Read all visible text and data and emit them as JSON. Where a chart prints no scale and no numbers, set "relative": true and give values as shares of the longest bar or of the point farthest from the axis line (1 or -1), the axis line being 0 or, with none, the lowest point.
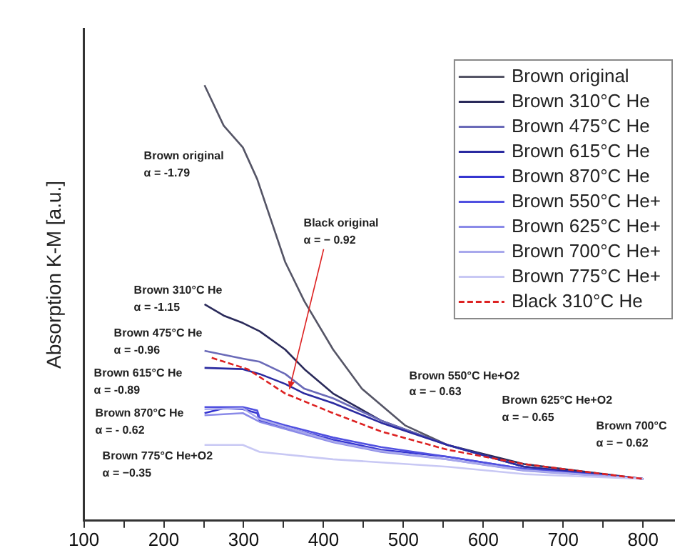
{
  "chart_data": {
    "type": "line",
    "relative": true,
    "ylabel": "Absorption K-M [a.u.]",
    "xlim": [
      100,
      840
    ],
    "xticks": [
      100,
      {
        "value": 150,
        "label": null
      },
      200,
      {
        "value": 250,
        "label": null
      },
      300,
      {
        "value": 350,
        "label": null
      },
      400,
      {
        "value": 450,
        "label": null
      },
      500,
      {
        "value": 550,
        "label": null
      },
      600,
      {
        "value": 650,
        "label": null
      },
      700,
      {
        "value": 750,
        "label": null
      },
      800
    ],
    "legend": "top right",
    "grid": false,
    "marker": "none",
    "series": [
      {
        "name": "Brown original",
        "color": "#555566",
        "x": [
          251,
          275,
          299,
          317,
          352,
          376,
          412,
          448,
          502,
          555,
          651,
          800
        ],
        "values": [
          1,
          0.907,
          0.857,
          0.784,
          0.594,
          0.504,
          0.393,
          0.303,
          0.219,
          0.174,
          0.124,
          0.096
        ]
      },
      {
        "name": "Brown 310°C He",
        "color": "#2a2a5a",
        "x": [
          251,
          275,
          299,
          320,
          352,
          376,
          412,
          472,
          555,
          651,
          800
        ],
        "values": [
          0.497,
          0.471,
          0.454,
          0.435,
          0.393,
          0.348,
          0.292,
          0.23,
          0.174,
          0.13,
          0.096
        ]
      },
      {
        "name": "Brown 475°C He",
        "color": "#6a6ab8",
        "x": [
          251,
          299,
          320,
          352,
          376,
          412,
          472,
          555,
          651,
          800
        ],
        "values": [
          0.39,
          0.372,
          0.365,
          0.337,
          0.303,
          0.281,
          0.23,
          0.174,
          0.124,
          0.096
        ]
      },
      {
        "name": "Brown 615°C He",
        "color": "#2a2aa0",
        "x": [
          251,
          299,
          320,
          352,
          376,
          412,
          472,
          555,
          651,
          800
        ],
        "values": [
          0.351,
          0.348,
          0.337,
          0.314,
          0.292,
          0.27,
          0.225,
          0.174,
          0.124,
          0.096
        ]
      },
      {
        "name": "Brown 870°C He",
        "color": "#3535d0",
        "x": [
          251,
          275,
          299,
          317,
          320,
          352,
          412,
          472,
          555,
          651,
          800
        ],
        "values": [
          0.247,
          0.258,
          0.256,
          0.247,
          0.23,
          0.214,
          0.186,
          0.163,
          0.147,
          0.119,
          0.096
        ]
      },
      {
        "name": "Brown 550°C He+",
        "color": "#5050e0",
        "x": [
          251,
          299,
          317,
          320,
          352,
          412,
          472,
          555,
          651,
          800
        ],
        "values": [
          0.261,
          0.261,
          0.253,
          0.236,
          0.219,
          0.191,
          0.169,
          0.147,
          0.119,
          0.096
        ]
      },
      {
        "name": "Brown 625°C He+",
        "color": "#8a8ae8",
        "x": [
          251,
          299,
          320,
          412,
          472,
          555,
          651,
          800
        ],
        "values": [
          0.242,
          0.247,
          0.227,
          0.18,
          0.158,
          0.141,
          0.115,
          0.096
        ]
      },
      {
        "name": "Brown 700°C He+",
        "color": "#a8a8ec",
        "x": [
          251,
          299,
          320,
          412,
          472,
          555,
          651,
          800
        ],
        "values": [
          0.256,
          0.258,
          0.233,
          0.182,
          0.16,
          0.141,
          0.116,
          0.096
        ]
      },
      {
        "name": "Brown 775°C He+",
        "color": "#c8c8f4",
        "x": [
          251,
          299,
          320,
          412,
          555,
          651,
          800
        ],
        "values": [
          0.174,
          0.174,
          0.158,
          0.141,
          0.124,
          0.107,
          0.096
        ]
      },
      {
        "name": "Black 310°C He",
        "color": "#dd2222",
        "line_style": "dashed",
        "x": [
          260,
          305,
          352,
          412,
          472,
          555,
          651,
          800
        ],
        "values": [
          0.374,
          0.348,
          0.292,
          0.247,
          0.205,
          0.163,
          0.13,
          0.096
        ]
      }
    ],
    "annotations": [
      "Brown original",
      "α = -1.79",
      "Black original",
      "α = − 0.92",
      "Brown 310°C He",
      "α = -1.15",
      "Brown 475°C He",
      "α = -0.96",
      "Brown 615°C He",
      "α = -0.89",
      "Brown 870°C He",
      "α = - 0.62",
      "Brown 775°C He+O2",
      "α = −0.35",
      "Brown 550°C He+O2",
      "α = − 0.63",
      "Brown 625°C He+O2",
      "α = − 0.65",
      "Brown 700°C",
      "α = − 0.62"
    ]
  }
}
